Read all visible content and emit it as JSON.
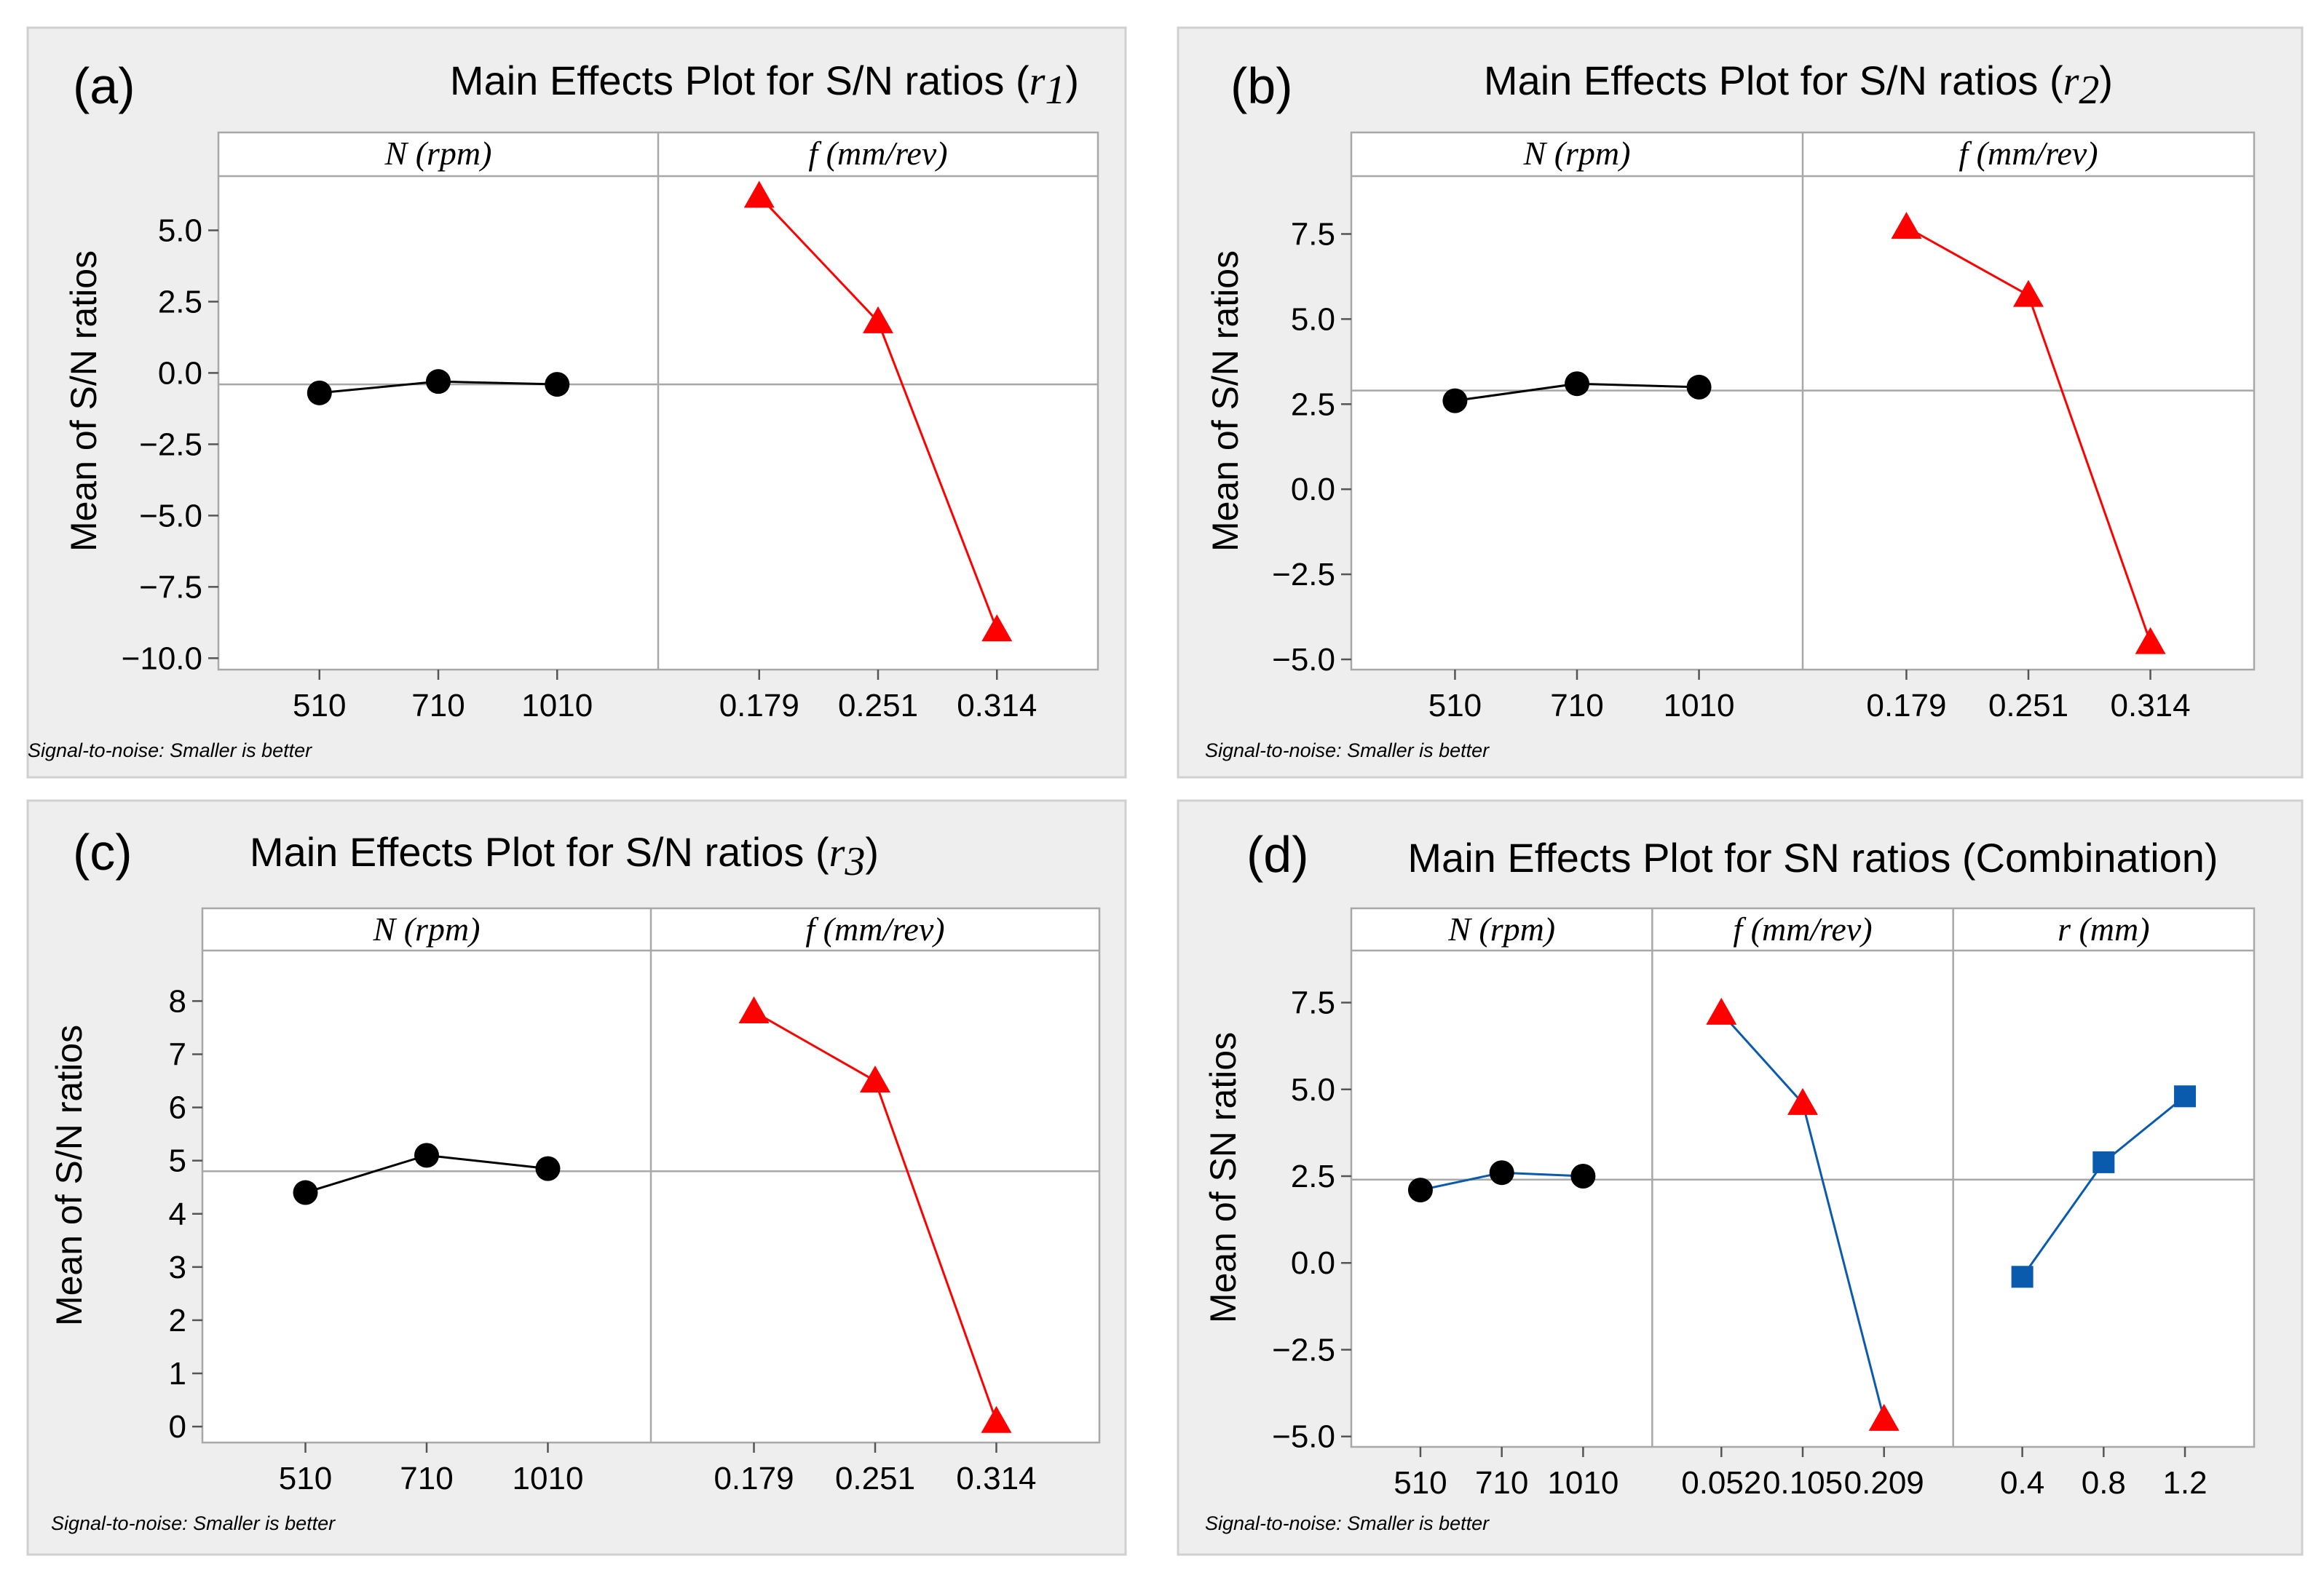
{
  "figure": {
    "footnote": "Signal-to-noise: Smaller is better"
  },
  "chart_data": [
    {
      "type": "line",
      "panel_label": "(a)",
      "title": "Main Effects Plot for S/N ratios",
      "title_var": "r",
      "title_sub": "1",
      "ylabel": "Mean of S/N ratios",
      "ylim": [
        -10.4,
        6.9
      ],
      "yticks": [
        5.0,
        2.5,
        0.0,
        -2.5,
        -5.0,
        -7.5,
        -10.0
      ],
      "ytick_labels": [
        "5.0",
        "2.5",
        "0.0",
        "−2.5",
        "−5.0",
        "−7.5",
        "−10.0"
      ],
      "overall_mean": -0.4,
      "factors": [
        {
          "name": "N (rpm)",
          "levels": [
            "510",
            "710",
            "1010"
          ],
          "values": [
            -0.7,
            -0.3,
            -0.4
          ],
          "color": "#000000",
          "marker": "circle"
        },
        {
          "name": "f (mm/rev)",
          "levels": [
            "0.179",
            "0.251",
            "0.314"
          ],
          "values": [
            6.2,
            1.8,
            -9.0
          ],
          "color": "#ff0000",
          "marker": "triangle"
        }
      ]
    },
    {
      "type": "line",
      "panel_label": "(b)",
      "title": "Main Effects Plot for S/N ratios",
      "title_var": "r",
      "title_sub": "2",
      "ylabel": "Mean of S/N ratios",
      "ylim": [
        -5.3,
        9.2
      ],
      "yticks": [
        7.5,
        5.0,
        2.5,
        0.0,
        -2.5,
        -5.0
      ],
      "ytick_labels": [
        "7.5",
        "5.0",
        "2.5",
        "0.0",
        "−2.5",
        "−5.0"
      ],
      "overall_mean": 2.9,
      "factors": [
        {
          "name": "N (rpm)",
          "levels": [
            "510",
            "710",
            "1010"
          ],
          "values": [
            2.6,
            3.1,
            3.0
          ],
          "color": "#000000",
          "marker": "circle"
        },
        {
          "name": "f (mm/rev)",
          "levels": [
            "0.179",
            "0.251",
            "0.314"
          ],
          "values": [
            7.7,
            5.7,
            -4.5
          ],
          "color": "#ff0000",
          "marker": "triangle"
        }
      ]
    },
    {
      "type": "line",
      "panel_label": "(c)",
      "title": "Main Effects Plot for S/N ratios",
      "title_var": "r",
      "title_sub": "3",
      "ylabel": "Mean of S/N ratios",
      "ylim": [
        -0.3,
        8.95
      ],
      "yticks": [
        8,
        7,
        6,
        5,
        4,
        3,
        2,
        1,
        0
      ],
      "ytick_labels": [
        "8",
        "7",
        "6",
        "5",
        "4",
        "3",
        "2",
        "1",
        "0"
      ],
      "overall_mean": 4.8,
      "factors": [
        {
          "name": "N (rpm)",
          "levels": [
            "510",
            "710",
            "1010"
          ],
          "values": [
            4.4,
            5.1,
            4.85
          ],
          "color": "#000000",
          "marker": "circle"
        },
        {
          "name": "f (mm/rev)",
          "levels": [
            "0.179",
            "0.251",
            "0.314"
          ],
          "values": [
            7.8,
            6.5,
            0.1
          ],
          "color": "#ff0000",
          "marker": "triangle"
        }
      ]
    },
    {
      "type": "line",
      "panel_label": "(d)",
      "title": "Main Effects Plot for SN ratios (Combination)",
      "title_var": "",
      "title_sub": "",
      "ylabel": "Mean of SN ratios",
      "ylim": [
        -5.3,
        9.0
      ],
      "yticks": [
        7.5,
        5.0,
        2.5,
        0.0,
        -2.5,
        -5.0
      ],
      "ytick_labels": [
        "7.5",
        "5.0",
        "2.5",
        "0.0",
        "−2.5",
        "−5.0"
      ],
      "overall_mean": 2.4,
      "factors": [
        {
          "name": "N (rpm)",
          "levels": [
            "510",
            "710",
            "1010"
          ],
          "values": [
            2.1,
            2.6,
            2.5
          ],
          "color": "#0a5aae",
          "marker": "circle"
        },
        {
          "name": "f (mm/rev)",
          "levels": [
            "0.052",
            "0.105",
            "0.209"
          ],
          "values": [
            7.2,
            4.6,
            -4.5
          ],
          "color": "#0a5aae",
          "marker": "triangle"
        },
        {
          "name": "r (mm)",
          "levels": [
            "0.4",
            "0.8",
            "1.2"
          ],
          "values": [
            -0.4,
            2.9,
            4.8
          ],
          "color": "#0a5aae",
          "marker": "square"
        }
      ]
    }
  ]
}
